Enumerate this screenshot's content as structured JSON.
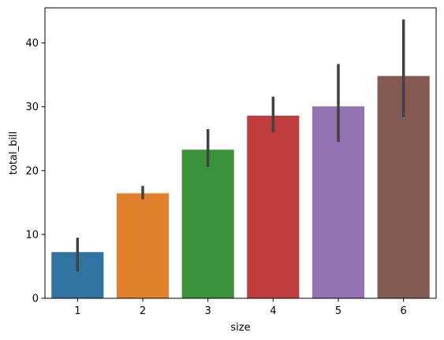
{
  "chart_data": {
    "type": "bar",
    "categories": [
      "1",
      "2",
      "3",
      "4",
      "5",
      "6"
    ],
    "values": [
      7.24,
      16.45,
      23.28,
      28.61,
      30.07,
      34.83
    ],
    "error_low": [
      4.2,
      15.5,
      20.6,
      26.0,
      24.5,
      28.4
    ],
    "error_high": [
      9.5,
      17.6,
      26.5,
      31.6,
      36.7,
      43.7
    ],
    "bar_colors": [
      "#3274a1",
      "#e1812c",
      "#3a923a",
      "#c03d3e",
      "#9372b2",
      "#845b53"
    ],
    "error_color": "#424242",
    "xlabel": "size",
    "ylabel": "total_bill",
    "ylim": [
      0,
      45.5
    ],
    "yticks": [
      0,
      10,
      20,
      30,
      40
    ],
    "yticks_labels": [
      "0",
      "10",
      "20",
      "30",
      "40"
    ],
    "grid": false,
    "legend": false
  }
}
